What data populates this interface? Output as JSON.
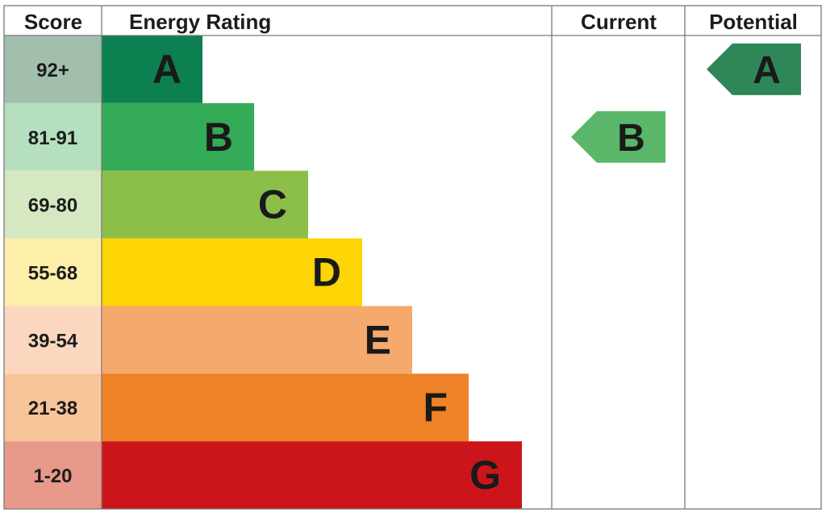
{
  "headers": {
    "score": "Score",
    "energy_rating": "Energy Rating",
    "current": "Current",
    "potential": "Potential"
  },
  "chart_data": {
    "type": "bar",
    "categories": [
      "A",
      "B",
      "C",
      "D",
      "E",
      "F",
      "G"
    ],
    "score_ranges": [
      "92+",
      "81-91",
      "69-80",
      "55-68",
      "39-54",
      "21-38",
      "1-20"
    ],
    "band_colors": [
      "#0c8050",
      "#33ab57",
      "#8cbe4a",
      "#fdd404",
      "#f6a96c",
      "#ee8226",
      "#cc151b"
    ],
    "score_cell_colors": [
      "#a2bfae",
      "#b5dfbf",
      "#d6e8c2",
      "#fdeeaa",
      "#fbd7bf",
      "#f8c49a",
      "#e8998a"
    ],
    "current": {
      "rating": "B",
      "color": "#5ab76a"
    },
    "potential": {
      "rating": "A",
      "color": "#2f8657"
    }
  }
}
